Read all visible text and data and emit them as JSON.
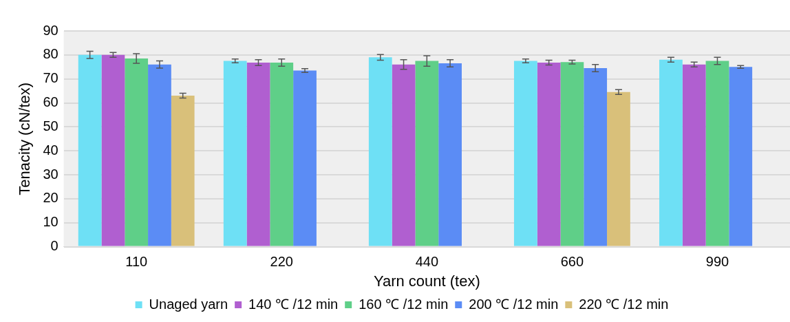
{
  "chart_data": {
    "type": "bar",
    "xlabel": "Yarn count (tex)",
    "ylabel": "Tenacity (cN/tex)",
    "categories": [
      "110",
      "220",
      "440",
      "660",
      "990"
    ],
    "ylim": [
      0,
      90
    ],
    "yticks": [
      0,
      10,
      20,
      30,
      40,
      50,
      60,
      70,
      80,
      90
    ],
    "grid": "y",
    "legend": "bottom",
    "series": [
      {
        "name": "Unaged yarn",
        "color": "#6ee0f5",
        "values": [
          80,
          77.5,
          79,
          77.5,
          78
        ],
        "errors": [
          1.5,
          0.8,
          1.2,
          0.8,
          1
        ]
      },
      {
        "name": "140 ℃ /12 min",
        "color": "#b05fd0",
        "values": [
          80,
          76.8,
          76,
          76.8,
          76
        ],
        "errors": [
          1,
          1.2,
          2,
          1,
          1
        ]
      },
      {
        "name": "160 ℃ /12 min",
        "color": "#5fcf88",
        "values": [
          78.5,
          76.8,
          77.5,
          77,
          77.5
        ],
        "errors": [
          2,
          1.5,
          2.2,
          0.8,
          1.5
        ]
      },
      {
        "name": "200 ℃ /12 min",
        "color": "#5b8cf5",
        "values": [
          76,
          73.5,
          76.5,
          74.5,
          75
        ],
        "errors": [
          1.5,
          0.8,
          1.5,
          1.5,
          0.6
        ]
      },
      {
        "name": "220 ℃ /12 min",
        "color": "#d9c07a",
        "values": [
          63,
          null,
          null,
          64.5,
          null
        ],
        "errors": [
          1,
          null,
          null,
          1,
          null
        ]
      }
    ]
  }
}
